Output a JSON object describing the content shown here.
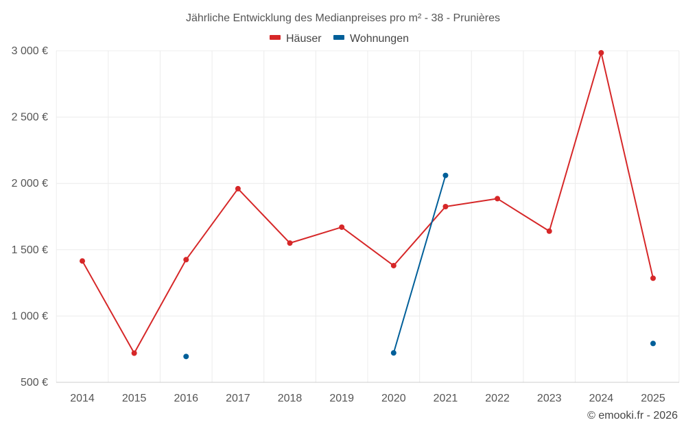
{
  "chart_data": {
    "type": "line",
    "title": "Jährliche Entwicklung des Medianpreises pro m² - 38 - Prunières",
    "categories": [
      "2014",
      "2015",
      "2016",
      "2017",
      "2018",
      "2019",
      "2020",
      "2021",
      "2022",
      "2023",
      "2024",
      "2025"
    ],
    "series": [
      {
        "name": "Häuser",
        "color": "#d62728",
        "values": [
          1415,
          720,
          1425,
          1960,
          1550,
          1670,
          1380,
          1825,
          1885,
          1640,
          2985,
          1285
        ]
      },
      {
        "name": "Wohnungen",
        "color": "#005f99",
        "values": [
          null,
          null,
          695,
          null,
          null,
          null,
          722,
          2060,
          null,
          null,
          null,
          793
        ]
      }
    ],
    "y_ticks": [
      500,
      1000,
      1500,
      2000,
      2500,
      3000
    ],
    "y_tick_labels": [
      "500 €",
      "1 000 €",
      "1 500 €",
      "2 000 €",
      "2 500 €",
      "3 000 €"
    ],
    "ylim": [
      500,
      3000
    ],
    "xlabel": "",
    "ylabel": "",
    "legend_position": "top-center",
    "grid": true
  },
  "credit": "© emooki.fr - 2026"
}
